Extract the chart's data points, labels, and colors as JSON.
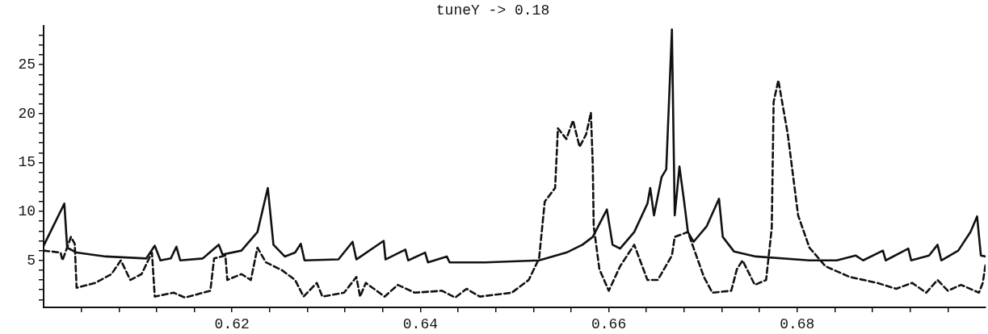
{
  "chart_data": {
    "type": "line",
    "title": "tuneY -> 0.18",
    "xlim": [
      0.6,
      0.7
    ],
    "ylim": [
      0.2,
      29
    ],
    "xticks": [
      {
        "value": 0.604,
        "label": null
      },
      {
        "value": 0.608,
        "label": null
      },
      {
        "value": 0.612,
        "label": null
      },
      {
        "value": 0.616,
        "label": null
      },
      0.62,
      {
        "value": 0.624,
        "label": null
      },
      {
        "value": 0.628,
        "label": null
      },
      {
        "value": 0.632,
        "label": null
      },
      {
        "value": 0.636,
        "label": null
      },
      0.64,
      {
        "value": 0.644,
        "label": null
      },
      {
        "value": 0.648,
        "label": null
      },
      {
        "value": 0.652,
        "label": null
      },
      {
        "value": 0.656,
        "label": null
      },
      0.66,
      {
        "value": 0.664,
        "label": null
      },
      {
        "value": 0.668,
        "label": null
      },
      {
        "value": 0.672,
        "label": null
      },
      {
        "value": 0.676,
        "label": null
      },
      0.68,
      {
        "value": 0.684,
        "label": null
      },
      {
        "value": 0.688,
        "label": null
      },
      {
        "value": 0.692,
        "label": null
      },
      {
        "value": 0.696,
        "label": null
      }
    ],
    "yticks": [
      {
        "value": 1,
        "label": null
      },
      {
        "value": 2,
        "label": null
      },
      {
        "value": 3,
        "label": null
      },
      {
        "value": 4,
        "label": null
      },
      5,
      {
        "value": 6,
        "label": null
      },
      {
        "value": 7,
        "label": null
      },
      {
        "value": 8,
        "label": null
      },
      {
        "value": 9,
        "label": null
      },
      10,
      {
        "value": 11,
        "label": null
      },
      {
        "value": 12,
        "label": null
      },
      {
        "value": 13,
        "label": null
      },
      {
        "value": 14,
        "label": null
      },
      15,
      {
        "value": 16,
        "label": null
      },
      {
        "value": 17,
        "label": null
      },
      {
        "value": 18,
        "label": null
      },
      {
        "value": 19,
        "label": null
      },
      20,
      {
        "value": 21,
        "label": null
      },
      {
        "value": 22,
        "label": null
      },
      {
        "value": 23,
        "label": null
      },
      {
        "value": 24,
        "label": null
      },
      25,
      {
        "value": 26,
        "label": null
      },
      {
        "value": 27,
        "label": null
      },
      {
        "value": 28,
        "label": null
      }
    ],
    "series": [
      {
        "color": "#111111",
        "line_style": "solid",
        "x": [
          0.6,
          0.6022,
          0.6025,
          0.6035,
          0.6066,
          0.6109,
          0.6118,
          0.6124,
          0.6135,
          0.6141,
          0.6145,
          0.6169,
          0.6186,
          0.619,
          0.621,
          0.6227,
          0.6238,
          0.6244,
          0.6256,
          0.6267,
          0.6273,
          0.6277,
          0.6313,
          0.6328,
          0.6332,
          0.6361,
          0.6363,
          0.6384,
          0.6387,
          0.6405,
          0.6408,
          0.6428,
          0.6431,
          0.6469,
          0.6526,
          0.6555,
          0.6572,
          0.6583,
          0.6598,
          0.6604,
          0.6612,
          0.6627,
          0.6641,
          0.6644,
          0.6648,
          0.6656,
          0.6661,
          0.6667,
          0.667,
          0.6675,
          0.668,
          0.6684,
          0.669,
          0.6704,
          0.6717,
          0.6721,
          0.6733,
          0.6756,
          0.6813,
          0.6842,
          0.6862,
          0.687,
          0.6891,
          0.6894,
          0.6918,
          0.6921,
          0.694,
          0.6949,
          0.6953,
          0.6971,
          0.6984,
          0.6991,
          0.6995,
          0.7
        ],
        "values": [
          6.5,
          10.8,
          6.3,
          5.8,
          5.4,
          5.2,
          6.5,
          5.0,
          5.2,
          6.4,
          5.0,
          5.2,
          6.6,
          5.6,
          6.0,
          7.9,
          12.4,
          6.6,
          5.4,
          5.8,
          6.7,
          5.0,
          5.1,
          6.9,
          5.1,
          7.0,
          5.1,
          6.1,
          5.0,
          5.8,
          4.8,
          5.4,
          4.8,
          4.8,
          5.0,
          5.8,
          6.6,
          7.4,
          10.2,
          6.6,
          6.2,
          7.9,
          10.8,
          12.4,
          9.6,
          13.5,
          14.3,
          28.6,
          9.6,
          14.6,
          11.0,
          7.9,
          6.9,
          8.5,
          11.3,
          7.4,
          5.9,
          5.4,
          5.0,
          5.0,
          5.5,
          5.0,
          6.0,
          5.0,
          6.2,
          5.0,
          5.5,
          6.6,
          5.0,
          6.0,
          7.9,
          9.5,
          5.5,
          5.4
        ]
      },
      {
        "color": "#111111",
        "line_style": "dashed",
        "x": [
          0.6,
          0.6018,
          0.602,
          0.6029,
          0.6033,
          0.6035,
          0.6055,
          0.6072,
          0.6082,
          0.6092,
          0.6104,
          0.6115,
          0.6118,
          0.6138,
          0.615,
          0.6177,
          0.6181,
          0.6193,
          0.6195,
          0.621,
          0.622,
          0.6227,
          0.6236,
          0.6253,
          0.6267,
          0.6276,
          0.629,
          0.6296,
          0.6319,
          0.6332,
          0.6336,
          0.6342,
          0.6362,
          0.6376,
          0.6394,
          0.6423,
          0.6437,
          0.6449,
          0.6463,
          0.6497,
          0.6515,
          0.6526,
          0.6532,
          0.6543,
          0.6546,
          0.6555,
          0.6562,
          0.6569,
          0.6576,
          0.6581,
          0.6583,
          0.6584,
          0.659,
          0.66,
          0.6612,
          0.6627,
          0.6641,
          0.6652,
          0.6667,
          0.667,
          0.6684,
          0.6691,
          0.6701,
          0.671,
          0.673,
          0.6736,
          0.6742,
          0.6755,
          0.6767,
          0.6773,
          0.6775,
          0.678,
          0.679,
          0.6801,
          0.6813,
          0.683,
          0.6856,
          0.6885,
          0.6905,
          0.6922,
          0.6937,
          0.6949,
          0.696,
          0.6974,
          0.6993,
          0.6997,
          0.7
        ],
        "values": [
          6.0,
          5.8,
          5.0,
          7.4,
          6.7,
          2.2,
          2.7,
          3.6,
          5.0,
          3.0,
          3.6,
          5.8,
          1.3,
          1.7,
          1.2,
          1.9,
          5.2,
          5.5,
          3.0,
          3.6,
          3.0,
          6.3,
          4.8,
          4.0,
          3.0,
          1.3,
          2.7,
          1.3,
          1.7,
          3.3,
          1.3,
          2.7,
          1.3,
          2.5,
          1.7,
          1.9,
          1.2,
          2.1,
          1.3,
          1.7,
          3.0,
          5.2,
          11.0,
          12.4,
          18.5,
          17.4,
          19.3,
          16.6,
          17.9,
          20.1,
          14.7,
          8.5,
          4.1,
          1.9,
          4.4,
          6.6,
          3.0,
          3.0,
          5.5,
          7.4,
          7.9,
          6.0,
          3.3,
          1.7,
          1.9,
          4.1,
          5.0,
          2.5,
          3.0,
          8.3,
          21.2,
          23.4,
          17.9,
          9.6,
          6.3,
          4.4,
          3.3,
          2.7,
          2.1,
          2.7,
          1.7,
          3.0,
          1.9,
          2.5,
          1.7,
          2.7,
          4.6
        ]
      }
    ]
  }
}
